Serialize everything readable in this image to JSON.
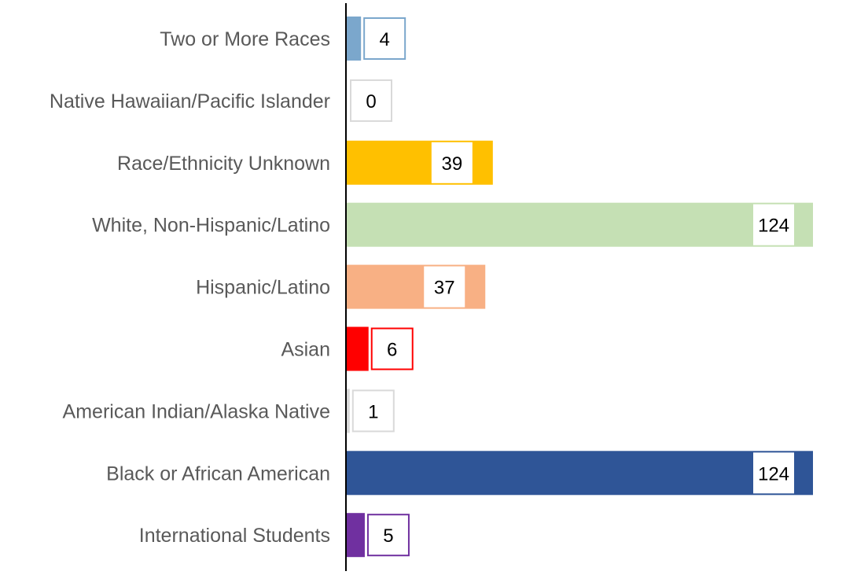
{
  "chart_data": {
    "type": "bar",
    "orientation": "horizontal",
    "categories": [
      "Two or More Races",
      "Native Hawaiian/Pacific Islander",
      "Race/Ethnicity Unknown",
      "White, Non-Hispanic/Latino",
      "Hispanic/Latino",
      "Asian",
      "American Indian/Alaska Native",
      "Black or African American",
      "International Students"
    ],
    "values": [
      4,
      0,
      39,
      124,
      37,
      6,
      1,
      124,
      5
    ],
    "colors": [
      "#7ba7cc",
      "#d9d9d9",
      "#ffc000",
      "#c5e0b4",
      "#f8b084",
      "#ff0000",
      "#d9d9d9",
      "#2f5597",
      "#7030a0"
    ],
    "title": "",
    "xlabel": "",
    "ylabel": "",
    "xlim": [
      0,
      124
    ],
    "grid": false,
    "legend": "none",
    "data_labels": true
  }
}
